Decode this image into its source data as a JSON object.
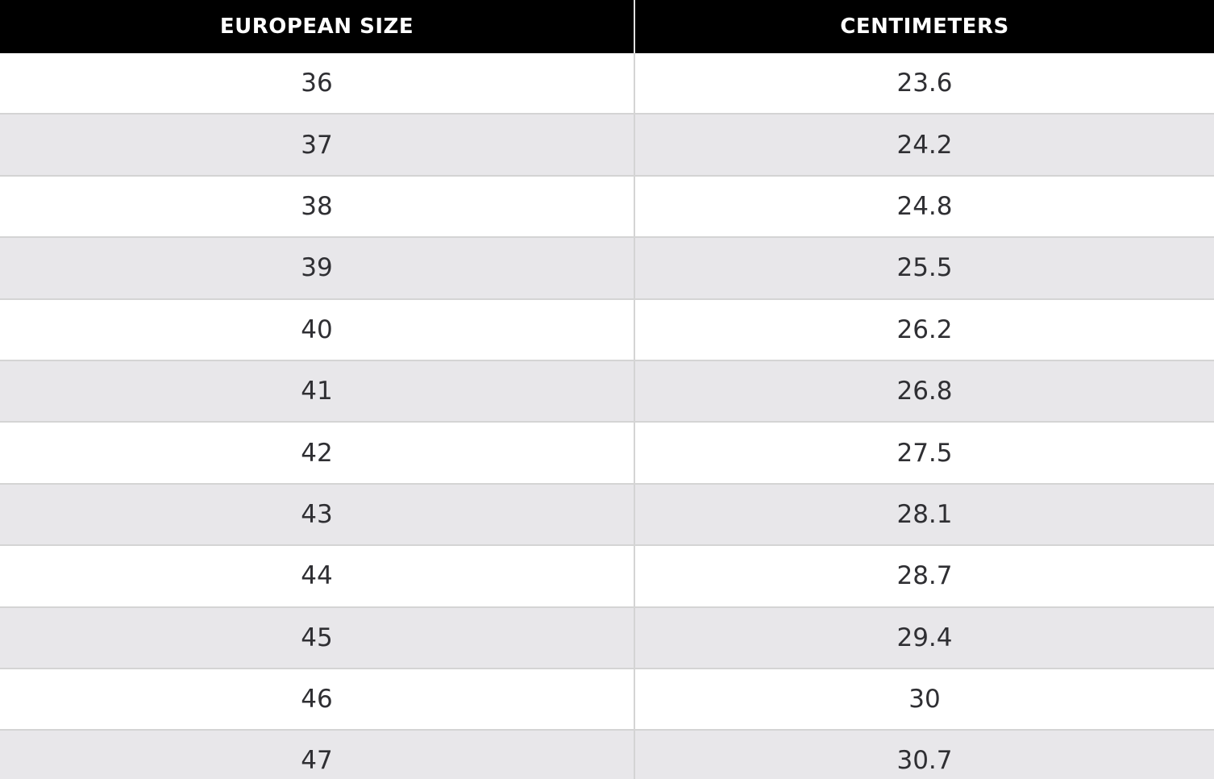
{
  "table": {
    "header": [
      "EUROPEAN SIZE",
      "CENTIMETERS"
    ],
    "rows": [
      [
        "36",
        "23.6"
      ],
      [
        "37",
        "24.2"
      ],
      [
        "38",
        "24.8"
      ],
      [
        "39",
        "25.5"
      ],
      [
        "40",
        "26.2"
      ],
      [
        "41",
        "26.8"
      ],
      [
        "42",
        "27.5"
      ],
      [
        "43",
        "28.1"
      ],
      [
        "44",
        "28.7"
      ],
      [
        "45",
        "29.4"
      ],
      [
        "46",
        "30"
      ],
      [
        "47",
        "30.7"
      ]
    ]
  }
}
